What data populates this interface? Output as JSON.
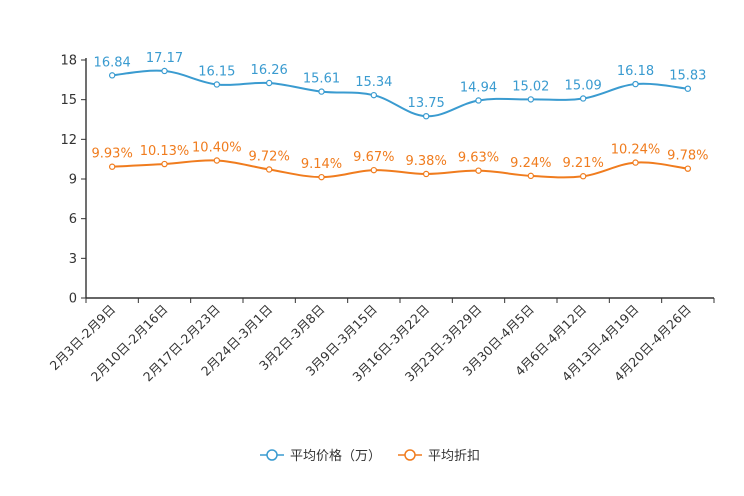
{
  "chart_data": {
    "type": "line",
    "title": "",
    "xlabel": "",
    "ylabel": "",
    "ylim": [
      0,
      18
    ],
    "yticks": [
      0,
      3,
      6,
      9,
      12,
      15,
      18
    ],
    "grid": false,
    "legend_position": "bottom",
    "categories": [
      "2月3日-2月9日",
      "2月10日-2月16日",
      "2月17日-2月23日",
      "2月24日-3月1日",
      "3月2日-3月8日",
      "3月9日-3月15日",
      "3月16日-3月22日",
      "3月23日-3月29日",
      "3月30日-4月5日",
      "4月6日-4月12日",
      "4月13日-4月19日",
      "4月20日-4月26日"
    ],
    "series": [
      {
        "name": "平均价格（万）",
        "color": "#3a9bd0",
        "values": [
          16.84,
          17.17,
          16.15,
          16.26,
          15.61,
          15.34,
          13.75,
          14.94,
          15.02,
          15.09,
          16.18,
          15.83
        ],
        "labels": [
          "16.84",
          "17.17",
          "16.15",
          "16.26",
          "15.61",
          "15.34",
          "13.75",
          "14.94",
          "15.02",
          "15.09",
          "16.18",
          "15.83"
        ]
      },
      {
        "name": "平均折扣",
        "color": "#f07c1e",
        "values": [
          9.93,
          10.13,
          10.4,
          9.72,
          9.14,
          9.67,
          9.38,
          9.63,
          9.24,
          9.21,
          10.24,
          9.78
        ],
        "labels": [
          "9.93%",
          "10.13%",
          "10.40%",
          "9.72%",
          "9.14%",
          "9.67%",
          "9.38%",
          "9.63%",
          "9.24%",
          "9.21%",
          "10.24%",
          "9.78%"
        ]
      }
    ]
  }
}
